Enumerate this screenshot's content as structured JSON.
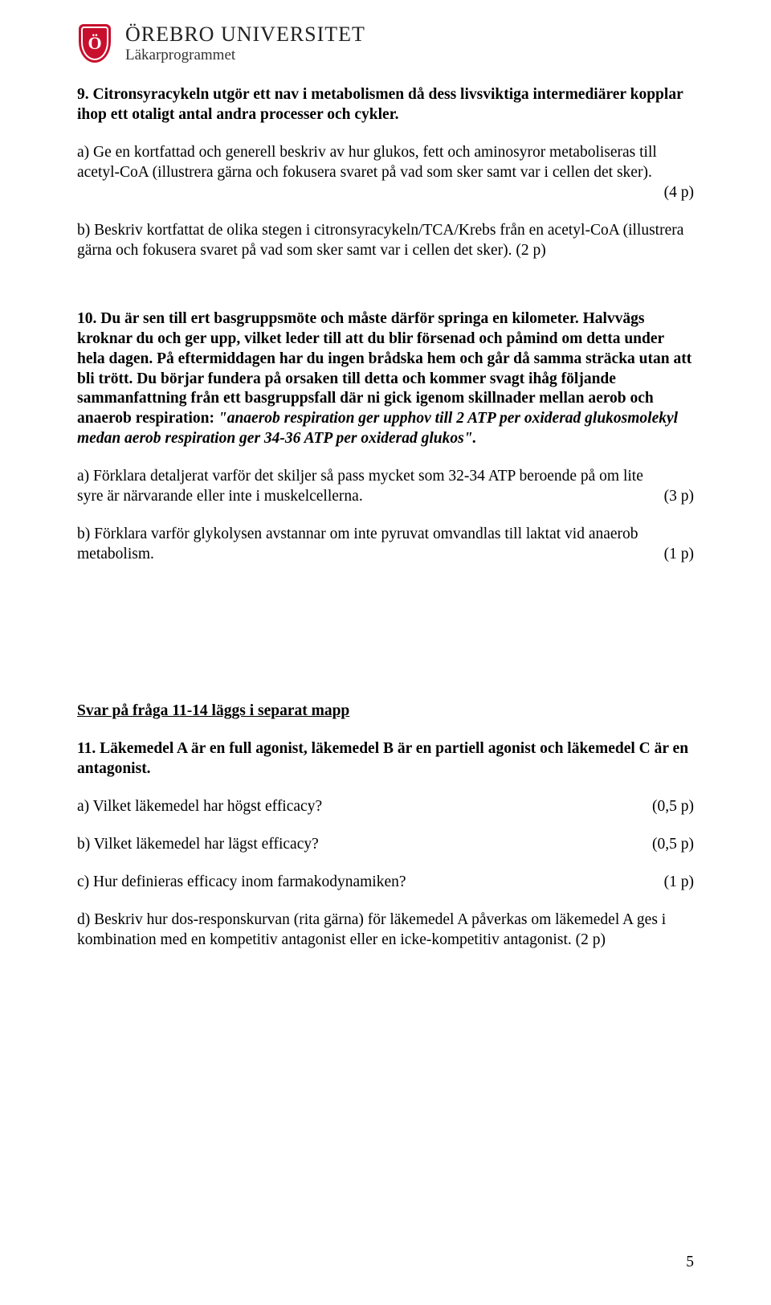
{
  "header": {
    "logo_letter": "Ö",
    "university": "ÖREBRO UNIVERSITET",
    "program": "Läkarprogrammet"
  },
  "q9": {
    "title": "9. Citronsyracykeln utgör ett nav i metabolismen då dess livsviktiga intermediärer kopplar ihop ett otaligt antal andra processer och cykler.",
    "a_text": "a) Ge en kortfattad och generell beskriv av hur glukos, fett och aminosyror metaboliseras till acetyl-CoA (illustrera gärna och fokusera svaret på vad som sker samt var i cellen det sker).",
    "a_points": "(4 p)",
    "b_text": "b) Beskriv kortfattat de olika stegen i citronsyracykeln/TCA/Krebs från en acetyl-CoA (illustrera gärna och fokusera svaret på vad som sker samt var i cellen det sker).",
    "b_points": "(2 p)"
  },
  "q10": {
    "title_plain_start": "10. Du är sen till ert basgruppsmöte och måste därför springa en kilometer. Halvvägs kroknar du och ger upp, vilket leder till att du blir försenad och påmind om detta under hela dagen. På eftermiddagen har du ingen brådska hem och går då samma sträcka utan att bli trött. Du börjar fundera på orsaken till detta och kommer svagt ihåg följande sammanfattning från ett basgruppsfall där ni gick igenom skillnader mellan aerob och anaerob respiration: ",
    "title_italic": "\"anaerob respiration ger upphov till 2 ATP per oxiderad glukosmolekyl medan aerob respiration ger 34-36 ATP per oxiderad glukos\".",
    "a_text": "a) Förklara detaljerat varför det skiljer så pass mycket som 32-34 ATP beroende på om lite syre är närvarande eller inte i muskelcellerna.",
    "a_points": "(3 p)",
    "b_text": "b) Förklara varför glykolysen avstannar om inte pyruvat omvandlas till laktat vid anaerob metabolism.",
    "b_points": "(1 p)"
  },
  "section_note": "Svar på fråga 11-14 läggs i separat mapp",
  "q11": {
    "title": "11. Läkemedel A är en full agonist, läkemedel B är en partiell agonist och läkemedel C är en antagonist.",
    "a_text": "a) Vilket läkemedel har högst efficacy?",
    "a_points": "(0,5 p)",
    "b_text": "b) Vilket läkemedel har lägst efficacy?",
    "b_points": "(0,5 p)",
    "c_text": "c) Hur definieras efficacy inom farmakodynamiken?",
    "c_points": "(1 p)",
    "d_text": "d) Beskriv hur dos-responskurvan (rita gärna) för läkemedel A påverkas om läkemedel A ges i kombination med en kompetitiv antagonist eller en icke-kompetitiv antagonist.",
    "d_points": "(2 p)"
  },
  "page_number": "5"
}
